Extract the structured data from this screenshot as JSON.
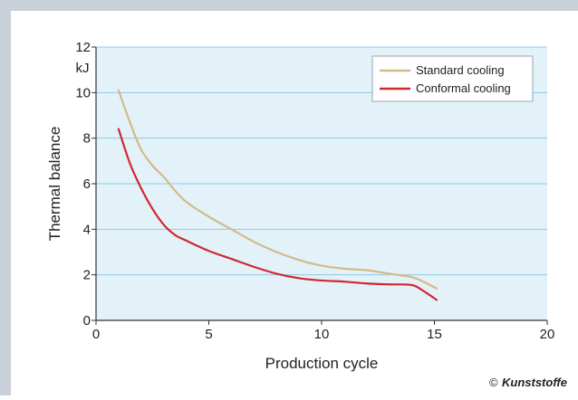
{
  "chart_data": {
    "type": "line",
    "title": "",
    "xlabel": "Production cycle",
    "ylabel": "Thermal balance",
    "yunit": "kJ",
    "xlim": [
      0,
      20
    ],
    "ylim": [
      0,
      12
    ],
    "xticks": [
      0,
      5,
      10,
      15,
      20
    ],
    "yticks": [
      0,
      2,
      4,
      6,
      8,
      10,
      12
    ],
    "grid": "horizontal",
    "legend_position": "top-right",
    "plot_background": "#e3f2f9",
    "series": [
      {
        "name": "Standard cooling",
        "color": "#d4b98a",
        "points": [
          [
            1,
            10.1
          ],
          [
            1.5,
            8.7
          ],
          [
            2,
            7.5
          ],
          [
            2.5,
            6.8
          ],
          [
            3,
            6.3
          ],
          [
            3.5,
            5.7
          ],
          [
            4,
            5.2
          ],
          [
            5,
            4.55
          ],
          [
            6,
            4.0
          ],
          [
            7,
            3.45
          ],
          [
            8,
            3.0
          ],
          [
            9,
            2.65
          ],
          [
            10,
            2.4
          ],
          [
            11,
            2.27
          ],
          [
            12,
            2.2
          ],
          [
            13,
            2.05
          ],
          [
            14,
            1.9
          ],
          [
            14.5,
            1.7
          ],
          [
            15.1,
            1.4
          ]
        ]
      },
      {
        "name": "Conformal cooling",
        "color": "#d22630",
        "points": [
          [
            1,
            8.4
          ],
          [
            1.5,
            6.9
          ],
          [
            2,
            5.8
          ],
          [
            2.5,
            4.9
          ],
          [
            3,
            4.2
          ],
          [
            3.5,
            3.75
          ],
          [
            4,
            3.5
          ],
          [
            5,
            3.05
          ],
          [
            6,
            2.7
          ],
          [
            7,
            2.35
          ],
          [
            8,
            2.05
          ],
          [
            9,
            1.85
          ],
          [
            10,
            1.75
          ],
          [
            11,
            1.7
          ],
          [
            12,
            1.62
          ],
          [
            13,
            1.58
          ],
          [
            14,
            1.55
          ],
          [
            14.5,
            1.3
          ],
          [
            15.1,
            0.9
          ]
        ]
      }
    ]
  },
  "copyright": {
    "symbol": "©",
    "brand": "Kunststoffe"
  }
}
